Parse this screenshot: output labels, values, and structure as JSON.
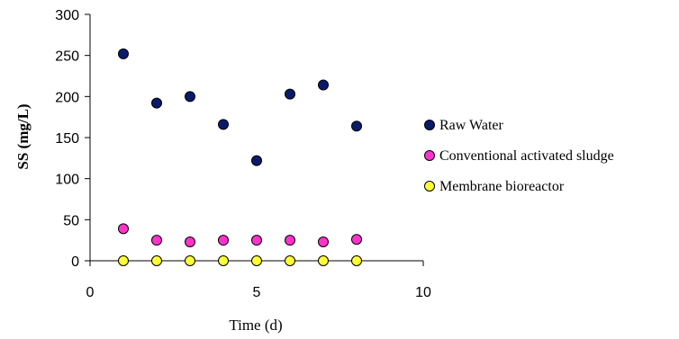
{
  "chart_data": {
    "type": "scatter",
    "title": "",
    "xlabel": "Time (d)",
    "ylabel": "SS (mg/L)",
    "xlim": [
      0,
      10
    ],
    "ylim": [
      0,
      300
    ],
    "x_ticks": [
      0,
      5,
      10
    ],
    "y_ticks": [
      0,
      50,
      100,
      150,
      200,
      250,
      300
    ],
    "grid": false,
    "legend_position": "right",
    "series": [
      {
        "name": "Raw  Water",
        "color": "#0a1a6b",
        "x": [
          1,
          2,
          3,
          4,
          5,
          6,
          7,
          8
        ],
        "values": [
          252,
          192,
          200,
          166,
          122,
          203,
          214,
          164
        ]
      },
      {
        "name": "Conventional activated sludge",
        "color": "#ff33cc",
        "x": [
          1,
          2,
          3,
          4,
          5,
          6,
          7,
          8
        ],
        "values": [
          39,
          25,
          23,
          25,
          25,
          25,
          23,
          26
        ]
      },
      {
        "name": "Membrane bioreactor",
        "color": "#ffff33",
        "x": [
          1,
          2,
          3,
          4,
          5,
          6,
          7,
          8
        ],
        "values": [
          0,
          0,
          0,
          0,
          0,
          0,
          0,
          0
        ]
      }
    ]
  }
}
